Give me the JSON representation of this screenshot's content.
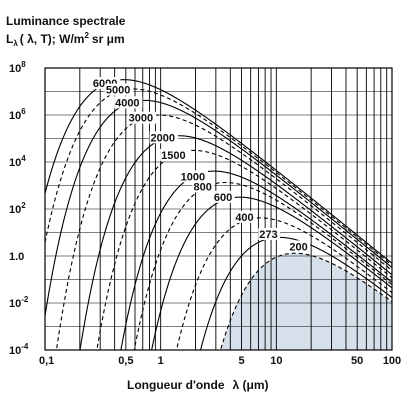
{
  "chart_data": {
    "type": "line",
    "title_line1": "Luminance spectrale",
    "ylabel_sym": "L",
    "ylabel_sub": "λ",
    "ylabel_args": "( λ, T); W/m",
    "ylabel_sup": "2",
    "ylabel_unit": "sr μm",
    "xlabel_text": "Longueur d'onde",
    "xlabel_sym": "λ (μm)",
    "x_scale": "log",
    "y_scale": "log",
    "xlim": [
      0.1,
      100
    ],
    "ylim": [
      0.0001,
      100000000
    ],
    "x_ticks": [
      {
        "value": 0.1,
        "label": "0,1"
      },
      {
        "value": 0.5,
        "label": "0,5"
      },
      {
        "value": 1,
        "label": "1"
      },
      {
        "value": 5,
        "label": "5"
      },
      {
        "value": 10,
        "label": "10"
      },
      {
        "value": 50,
        "label": "50"
      },
      {
        "value": 100,
        "label": "100"
      }
    ],
    "y_ticks": [
      {
        "value": 100000000,
        "base": "10",
        "exp": "8"
      },
      {
        "value": 1000000,
        "base": "10",
        "exp": "6"
      },
      {
        "value": 10000,
        "base": "10",
        "exp": "4"
      },
      {
        "value": 100,
        "base": "10",
        "exp": "2"
      },
      {
        "value": 1,
        "base": "1.0",
        "exp": ""
      },
      {
        "value": 0.01,
        "base": "10",
        "exp": "-2"
      },
      {
        "value": 0.0001,
        "base": "10",
        "exp": "-4"
      }
    ],
    "grid": true,
    "shaded_series": "200",
    "series": [
      {
        "name": "6000",
        "temperature_K": 6000,
        "dashed": false,
        "label_at_um": 0.27
      },
      {
        "name": "5000",
        "temperature_K": 5000,
        "dashed": true,
        "label_at_um": 0.35
      },
      {
        "name": "4000",
        "temperature_K": 4000,
        "dashed": false,
        "label_at_um": 0.42
      },
      {
        "name": "3000",
        "temperature_K": 3000,
        "dashed": true,
        "label_at_um": 0.55
      },
      {
        "name": "2000",
        "temperature_K": 2000,
        "dashed": false,
        "label_at_um": 0.85
      },
      {
        "name": "1500",
        "temperature_K": 1500,
        "dashed": true,
        "label_at_um": 1.05
      },
      {
        "name": "1000",
        "temperature_K": 1000,
        "dashed": false,
        "label_at_um": 1.55
      },
      {
        "name": "800",
        "temperature_K": 800,
        "dashed": true,
        "label_at_um": 2.0
      },
      {
        "name": "600",
        "temperature_K": 600,
        "dashed": false,
        "label_at_um": 3.0
      },
      {
        "name": "400",
        "temperature_K": 400,
        "dashed": true,
        "label_at_um": 4.6
      },
      {
        "name": "273",
        "temperature_K": 273,
        "dashed": false,
        "label_at_um": 7.4
      },
      {
        "name": "200",
        "temperature_K": 200,
        "dashed": true,
        "label_at_um": 13.5
      }
    ]
  }
}
